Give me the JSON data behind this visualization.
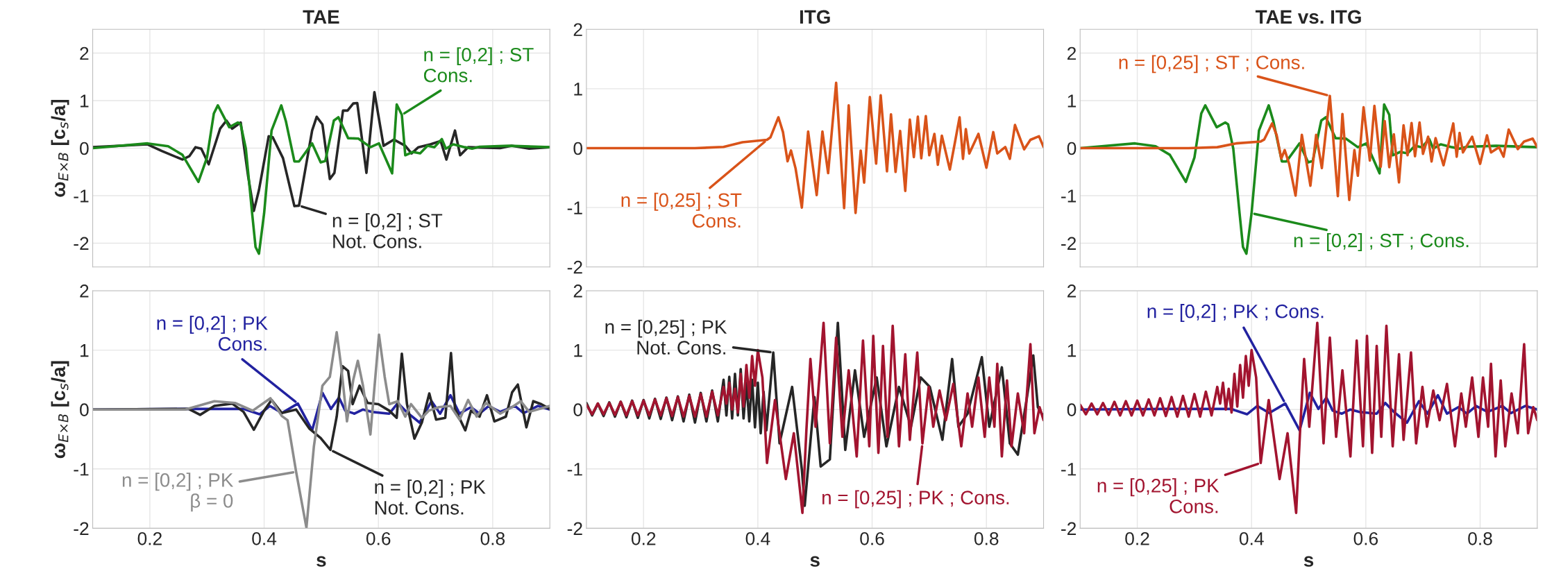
{
  "chart_data": [
    {
      "type": "line",
      "title": "TAE",
      "ylabel": "ω$_{E×B}$ [c$_{s}$/a]",
      "xlim": [
        0.1,
        0.9
      ],
      "xticks": [
        0.2,
        0.4,
        0.6,
        0.8
      ],
      "ylim": [
        -2.5,
        2.5
      ],
      "yticks": [
        -2,
        -1,
        0,
        1,
        2
      ],
      "grid": true,
      "tick_labels": "y",
      "series": [
        {
          "color": "#262626",
          "x": [
            0.1,
            0.196,
            0.221,
            0.257,
            0.269,
            0.28,
            0.29,
            0.303,
            0.323,
            0.334,
            0.344,
            0.359,
            0.372,
            0.382,
            0.391,
            0.408,
            0.415,
            0.433,
            0.453,
            0.461,
            0.484,
            0.492,
            0.502,
            0.515,
            0.523,
            0.538,
            0.546,
            0.556,
            0.563,
            0.579,
            0.593,
            0.609,
            0.627,
            0.647,
            0.658,
            0.67,
            0.691,
            0.709,
            0.719,
            0.734,
            0.743,
            0.757,
            0.813,
            0.833,
            0.864,
            0.9
          ],
          "values": [
            0.02,
            0.08,
            -0.06,
            -0.24,
            -0.17,
            0.02,
            -0.01,
            -0.34,
            0.41,
            0.58,
            0.41,
            0.54,
            -0.59,
            -1.32,
            -0.88,
            0.25,
            0.23,
            -0.21,
            -1.22,
            -1.21,
            0.37,
            0.66,
            0.5,
            -0.65,
            -0.52,
            0.79,
            0.79,
            0.94,
            0.95,
            -0.52,
            1.18,
            0.05,
            0.18,
            0.05,
            -0.11,
            0.02,
            0.08,
            0.15,
            -0.24,
            0.37,
            -0.15,
            0.02,
            0,
            0.05,
            -0.01,
            0.02
          ]
        },
        {
          "color": "#1b8a1b",
          "x": [
            0.1,
            0.196,
            0.232,
            0.257,
            0.285,
            0.3,
            0.312,
            0.319,
            0.339,
            0.354,
            0.359,
            0.368,
            0.379,
            0.385,
            0.391,
            0.4,
            0.413,
            0.43,
            0.438,
            0.453,
            0.461,
            0.484,
            0.499,
            0.507,
            0.522,
            0.53,
            0.547,
            0.565,
            0.586,
            0.601,
            0.624,
            0.632,
            0.641,
            0.647,
            0.66,
            0.673,
            0.686,
            0.698,
            0.711,
            0.718,
            0.731,
            0.751,
            0.764,
            0.777,
            0.828,
            0.9
          ],
          "values": [
            0,
            0.1,
            0.04,
            -0.14,
            -0.71,
            -0.2,
            0.73,
            0.9,
            0.44,
            0.54,
            0.5,
            -0.01,
            -1.37,
            -2.08,
            -2.22,
            -1.37,
            0.37,
            0.9,
            0.57,
            -0.28,
            -0.28,
            0.1,
            -0.3,
            -0.27,
            0.58,
            0.65,
            0.21,
            0.2,
            0.02,
            0.1,
            -0.53,
            0.92,
            0.7,
            -0.15,
            -0.08,
            -0.11,
            0.05,
            0.02,
            0.19,
            -0.01,
            0.08,
            0.02,
            -0.01,
            0.03,
            0.05,
            0.02
          ]
        }
      ],
      "annotations": [
        {
          "text": "n = [0,2] ; ST\nNot. Cons.",
          "x": 0.461,
          "y": -1.21
        },
        {
          "text": "n = [0,2] ; ST\nCons.",
          "x": 0.641,
          "y": 0.7
        }
      ]
    },
    {
      "type": "line",
      "title": "ITG",
      "xlim": [
        0.1,
        0.9
      ],
      "xticks": [
        0.2,
        0.4,
        0.6,
        0.8
      ],
      "ylim": [
        -2,
        2
      ],
      "yticks": [
        -2,
        -1,
        0,
        1,
        2
      ],
      "grid": true,
      "tick_labels": "y",
      "series": [
        {
          "color": "#d95319",
          "x": [
            0.1,
            0.29,
            0.34,
            0.373,
            0.416,
            0.422,
            0.436,
            0.444,
            0.452,
            0.458,
            0.466,
            0.477,
            0.488,
            0.503,
            0.513,
            0.523,
            0.537,
            0.551,
            0.559,
            0.571,
            0.58,
            0.586,
            0.596,
            0.607,
            0.615,
            0.626,
            0.633,
            0.641,
            0.649,
            0.658,
            0.666,
            0.673,
            0.68,
            0.686,
            0.694,
            0.7,
            0.709,
            0.715,
            0.722,
            0.736,
            0.745,
            0.753,
            0.759,
            0.764,
            0.77,
            0.786,
            0.8,
            0.812,
            0.819,
            0.833,
            0.841,
            0.85,
            0.866,
            0.877,
            0.892,
            0.9
          ],
          "values": [
            0,
            0,
            0.02,
            0.1,
            0.14,
            0.18,
            0.52,
            0.27,
            -0.22,
            -0.04,
            -0.34,
            -1,
            0.28,
            -0.79,
            0.28,
            -0.42,
            1.1,
            -1.01,
            0.72,
            -1.09,
            -0.04,
            -0.58,
            0.86,
            -0.26,
            0.89,
            -0.39,
            0.57,
            -0.4,
            0.29,
            -0.72,
            0.48,
            -0.15,
            0.53,
            -0.17,
            0.54,
            -0.12,
            0.24,
            -0.28,
            0.21,
            -0.36,
            0.1,
            0.52,
            -0.18,
            0.32,
            -0.09,
            0.24,
            -0.33,
            0.27,
            -0.09,
            0.02,
            -0.18,
            0.39,
            -0.02,
            0.14,
            0.2,
            0.02
          ]
        }
      ],
      "annotations": [
        {
          "text": "n = [0,25] ; ST\nCons.",
          "x": 0.416,
          "y": 0.14
        }
      ]
    },
    {
      "type": "line",
      "title": "TAE vs. ITG",
      "xlim": [
        0.1,
        0.9
      ],
      "xticks": [
        0.2,
        0.4,
        0.6,
        0.8
      ],
      "ylim": [
        -2.5,
        2.5
      ],
      "yticks": [
        -2,
        -1,
        0,
        1,
        2
      ],
      "grid": true,
      "tick_labels": "y",
      "series": [
        {
          "color": "#1b8a1b",
          "x": [
            0.1,
            0.196,
            0.232,
            0.257,
            0.285,
            0.3,
            0.312,
            0.319,
            0.339,
            0.354,
            0.359,
            0.368,
            0.379,
            0.385,
            0.391,
            0.4,
            0.413,
            0.43,
            0.438,
            0.453,
            0.461,
            0.484,
            0.499,
            0.507,
            0.522,
            0.53,
            0.547,
            0.565,
            0.586,
            0.601,
            0.624,
            0.632,
            0.641,
            0.647,
            0.66,
            0.673,
            0.686,
            0.698,
            0.711,
            0.718,
            0.731,
            0.751,
            0.764,
            0.777,
            0.828,
            0.9
          ],
          "values": [
            0,
            0.1,
            0.04,
            -0.14,
            -0.71,
            -0.2,
            0.73,
            0.9,
            0.44,
            0.54,
            0.5,
            -0.01,
            -1.37,
            -2.08,
            -2.22,
            -1.37,
            0.37,
            0.9,
            0.57,
            -0.28,
            -0.28,
            0.1,
            -0.3,
            -0.27,
            0.58,
            0.65,
            0.21,
            0.2,
            0.02,
            0.1,
            -0.53,
            0.92,
            0.7,
            -0.15,
            -0.08,
            -0.11,
            0.05,
            0.02,
            0.19,
            -0.01,
            0.08,
            0.02,
            -0.01,
            0.03,
            0.05,
            0.02
          ]
        },
        {
          "color": "#d95319",
          "x": [
            0.1,
            0.29,
            0.34,
            0.373,
            0.416,
            0.422,
            0.436,
            0.444,
            0.452,
            0.458,
            0.466,
            0.477,
            0.488,
            0.503,
            0.513,
            0.523,
            0.537,
            0.551,
            0.559,
            0.571,
            0.58,
            0.586,
            0.596,
            0.607,
            0.615,
            0.626,
            0.633,
            0.641,
            0.649,
            0.658,
            0.666,
            0.673,
            0.68,
            0.686,
            0.694,
            0.7,
            0.709,
            0.715,
            0.722,
            0.736,
            0.745,
            0.753,
            0.759,
            0.764,
            0.77,
            0.786,
            0.8,
            0.812,
            0.819,
            0.833,
            0.841,
            0.85,
            0.866,
            0.877,
            0.892,
            0.9
          ],
          "values": [
            0,
            0,
            0.02,
            0.1,
            0.14,
            0.18,
            0.52,
            0.27,
            -0.22,
            -0.04,
            -0.34,
            -1,
            0.28,
            -0.79,
            0.28,
            -0.42,
            1.1,
            -1.01,
            0.72,
            -1.09,
            -0.04,
            -0.58,
            0.86,
            -0.26,
            0.89,
            -0.39,
            0.57,
            -0.4,
            0.29,
            -0.72,
            0.48,
            -0.15,
            0.53,
            -0.17,
            0.54,
            -0.12,
            0.24,
            -0.28,
            0.21,
            -0.36,
            0.1,
            0.52,
            -0.18,
            0.32,
            -0.09,
            0.24,
            -0.33,
            0.27,
            -0.09,
            0.02,
            -0.18,
            0.39,
            -0.02,
            0.14,
            0.2,
            0.02
          ]
        }
      ],
      "annotations": [
        {
          "text": "n = [0,2] ; ST ; Cons.",
          "x": 0.4,
          "y": -1.37
        },
        {
          "text": "n = [0,25] ; ST ; Cons.",
          "x": 0.537,
          "y": 1.1
        }
      ]
    },
    {
      "type": "line",
      "xlabel": "s",
      "ylabel": "ω$_{E×B}$ [c$_{s}$/a]",
      "xlim": [
        0.1,
        0.9
      ],
      "xticks": [
        0.2,
        0.4,
        0.6,
        0.8
      ],
      "ylim": [
        -2,
        2
      ],
      "yticks": [
        -2,
        -1,
        0,
        1,
        2
      ],
      "grid": true,
      "series": [
        {
          "color": "#2222a0",
          "x": [
            0.1,
            0.252,
            0.364,
            0.392,
            0.41,
            0.431,
            0.459,
            0.484,
            0.502,
            0.517,
            0.531,
            0.542,
            0.558,
            0.573,
            0.588,
            0.619,
            0.634,
            0.649,
            0.672,
            0.693,
            0.708,
            0.726,
            0.742,
            0.762,
            0.777,
            0.793,
            0.813,
            0.839,
            0.854,
            0.879,
            0.9
          ],
          "values": [
            0,
            0.01,
            0.01,
            -0.08,
            0.06,
            -0.06,
            0.1,
            -0.35,
            0.28,
            0.01,
            0.2,
            -0.02,
            -0.07,
            0,
            -0.04,
            -0.07,
            0.11,
            -0.04,
            -0.22,
            0.14,
            -0.07,
            0.24,
            -0.07,
            0.04,
            -0.07,
            0.06,
            -0.04,
            0.06,
            -0.06,
            0.06,
            0
          ]
        },
        {
          "color": "#262626",
          "x": [
            0.1,
            0.268,
            0.288,
            0.313,
            0.344,
            0.364,
            0.382,
            0.4,
            0.413,
            0.431,
            0.456,
            0.479,
            0.499,
            0.516,
            0.527,
            0.537,
            0.547,
            0.555,
            0.567,
            0.581,
            0.6,
            0.619,
            0.632,
            0.641,
            0.65,
            0.663,
            0.676,
            0.689,
            0.701,
            0.717,
            0.727,
            0.734,
            0.752,
            0.762,
            0.777,
            0.79,
            0.803,
            0.823,
            0.834,
            0.844,
            0.859,
            0.871,
            0.885,
            0.9
          ],
          "values": [
            0,
            0.01,
            -0.09,
            0.06,
            0.1,
            -0.04,
            -0.34,
            -0.02,
            0.16,
            -0.06,
            0,
            -0.32,
            -0.48,
            -0.68,
            -0.12,
            0.73,
            0.65,
            0.09,
            0.4,
            0.11,
            0.09,
            -0.02,
            -0.14,
            0.94,
            0.09,
            -0.49,
            -0.22,
            0.27,
            -0.17,
            -0.14,
            0.95,
            0.01,
            -0.35,
            -0.02,
            -0.12,
            0.24,
            -0.2,
            -0.12,
            0.29,
            0.42,
            -0.3,
            0.14,
            0.09,
            0.01
          ]
        },
        {
          "color": "#8c8c8c",
          "x": [
            0.1,
            0.262,
            0.313,
            0.349,
            0.38,
            0.411,
            0.431,
            0.441,
            0.456,
            0.474,
            0.487,
            0.502,
            0.515,
            0.527,
            0.535,
            0.545,
            0.556,
            0.564,
            0.573,
            0.586,
            0.601,
            0.611,
            0.619,
            0.634,
            0.647,
            0.657,
            0.676,
            0.688,
            0.706,
            0.726,
            0.742,
            0.757,
            0.772,
            0.788,
            0.813,
            0.834,
            0.849,
            0.864,
            0.9
          ],
          "values": [
            0,
            0,
            0.14,
            0.11,
            -0.02,
            0.19,
            -0.11,
            -0.18,
            -1.05,
            -1.99,
            -0.63,
            0.4,
            0.55,
            1.3,
            0.71,
            -0.2,
            0.5,
            0.82,
            0.4,
            -0.42,
            1.26,
            0.55,
            0.09,
            0.14,
            -0.12,
            0.09,
            -0.14,
            -0.02,
            0.04,
            0.06,
            -0.17,
            0.16,
            -0.12,
            0.11,
            -0.07,
            0.04,
            0.14,
            -0.04,
            0.06
          ]
        }
      ],
      "annotations": [
        {
          "text": "n = [0,2] ; PK\nCons.",
          "x": 0.459,
          "y": 0.1
        },
        {
          "text": "n = [0,2] ; PK\nNot. Cons.",
          "x": 0.516,
          "y": -0.68
        },
        {
          "text": "n = [0,2] ; PK\nβ = 0",
          "x": 0.456,
          "y": -1.05
        }
      ]
    },
    {
      "type": "line",
      "xlabel": "s",
      "xlim": [
        0.1,
        0.9
      ],
      "xticks": [
        0.2,
        0.4,
        0.6,
        0.8
      ],
      "ylim": [
        -2,
        2
      ],
      "yticks": [
        -2,
        -1,
        0,
        1,
        2
      ],
      "grid": true,
      "series": [
        {
          "color": "#262626",
          "x": [
            0.1,
            0.11,
            0.12,
            0.13,
            0.14,
            0.15,
            0.16,
            0.17,
            0.18,
            0.19,
            0.2,
            0.21,
            0.22,
            0.23,
            0.24,
            0.25,
            0.26,
            0.27,
            0.28,
            0.29,
            0.3,
            0.31,
            0.32,
            0.33,
            0.34,
            0.345,
            0.35,
            0.355,
            0.36,
            0.365,
            0.37,
            0.375,
            0.38,
            0.385,
            0.39,
            0.395,
            0.4,
            0.405,
            0.41,
            0.415,
            0.427,
            0.438,
            0.46,
            0.477,
            0.482,
            0.499,
            0.51,
            0.526,
            0.54,
            0.553,
            0.57,
            0.586,
            0.608,
            0.625,
            0.647,
            0.668,
            0.685,
            0.701,
            0.723,
            0.74,
            0.751,
            0.767,
            0.792,
            0.805,
            0.827,
            0.841,
            0.855,
            0.871,
            0.882,
            0.89,
            0.9
          ],
          "values": [
            0.11,
            -0.1,
            0.1,
            -0.11,
            0.12,
            -0.12,
            0.13,
            -0.13,
            0.15,
            -0.14,
            0.16,
            -0.15,
            0.18,
            -0.16,
            0.2,
            -0.18,
            0.22,
            -0.2,
            0.25,
            -0.22,
            0.28,
            -0.2,
            0.32,
            -0.2,
            0.5,
            -0.1,
            0.55,
            -0.15,
            0.6,
            -0.1,
            0.68,
            -0.15,
            0.45,
            -0.2,
            0.5,
            -0.3,
            0.45,
            -0.4,
            0.3,
            -0.35,
            0.96,
            -0.57,
            0.38,
            -1.01,
            -1.62,
            0.21,
            -0.96,
            -0.84,
            1.46,
            -0.68,
            0.66,
            -0.46,
            0.54,
            -0.62,
            0.38,
            -0.29,
            0.54,
            0.38,
            -0.51,
            0.85,
            -0.29,
            -0.07,
            0.88,
            -0.29,
            0.71,
            -0.57,
            -0.76,
            0.21,
            0.91,
            0.04,
            -0.12
          ]
        },
        {
          "color": "#a2142f",
          "x": [
            0.1,
            0.11,
            0.12,
            0.13,
            0.14,
            0.15,
            0.16,
            0.17,
            0.18,
            0.19,
            0.2,
            0.21,
            0.22,
            0.23,
            0.24,
            0.25,
            0.26,
            0.27,
            0.28,
            0.29,
            0.3,
            0.31,
            0.32,
            0.33,
            0.34,
            0.345,
            0.35,
            0.355,
            0.36,
            0.365,
            0.37,
            0.375,
            0.38,
            0.385,
            0.39,
            0.395,
            0.4,
            0.408,
            0.416,
            0.43,
            0.438,
            0.449,
            0.463,
            0.478,
            0.485,
            0.492,
            0.501,
            0.515,
            0.526,
            0.537,
            0.548,
            0.559,
            0.573,
            0.584,
            0.595,
            0.602,
            0.611,
            0.619,
            0.627,
            0.636,
            0.647,
            0.658,
            0.666,
            0.679,
            0.688,
            0.699,
            0.707,
            0.718,
            0.729,
            0.742,
            0.756,
            0.767,
            0.775,
            0.786,
            0.797,
            0.805,
            0.814,
            0.819,
            0.827,
            0.836,
            0.844,
            0.855,
            0.866,
            0.877,
            0.884,
            0.893,
            0.9
          ],
          "values": [
            0.08,
            -0.08,
            0.1,
            -0.08,
            0.11,
            -0.09,
            0.13,
            -0.1,
            0.14,
            -0.1,
            0.15,
            -0.1,
            0.17,
            -0.1,
            0.19,
            -0.11,
            0.21,
            -0.12,
            0.23,
            -0.12,
            0.26,
            -0.12,
            0.3,
            -0.1,
            0.38,
            0.1,
            0.45,
            0,
            0.35,
            -0.05,
            0.6,
            0.05,
            0.75,
            0.2,
            0.9,
            0.4,
            1.0,
            0.54,
            -0.9,
            0.16,
            -0.4,
            -1.17,
            -0.4,
            -1.74,
            -0.34,
            0.85,
            -0.29,
            1.46,
            -0.57,
            1.21,
            -0.46,
            0.66,
            -0.79,
            1.16,
            -0.62,
            1.24,
            -0.73,
            1.07,
            -0.46,
            1.41,
            -0.62,
            0.93,
            -0.51,
            0.96,
            -0.57,
            0.38,
            -0.29,
            0.32,
            -0.18,
            0.43,
            -0.62,
            0.27,
            -0.29,
            0.54,
            -0.46,
            0.54,
            -0.29,
            0.77,
            -0.79,
            0.49,
            -0.62,
            0.27,
            -0.4,
            1.1,
            -0.4,
            0.04,
            -0.18
          ]
        }
      ],
      "annotations": [
        {
          "text": "n = [0,25] ; PK\nNot. Cons.",
          "x": 0.427,
          "y": 0.96
        },
        {
          "text": "n = [0,25] ; PK ; Cons.",
          "x": 0.688,
          "y": -0.57
        }
      ]
    },
    {
      "type": "line",
      "xlabel": "s",
      "xlim": [
        0.1,
        0.9
      ],
      "xticks": [
        0.2,
        0.4,
        0.6,
        0.8
      ],
      "ylim": [
        -2,
        2
      ],
      "yticks": [
        -2,
        -1,
        0,
        1,
        2
      ],
      "grid": true,
      "series": [
        {
          "color": "#2222a0",
          "x": [
            0.1,
            0.252,
            0.364,
            0.392,
            0.41,
            0.431,
            0.459,
            0.484,
            0.502,
            0.517,
            0.531,
            0.542,
            0.558,
            0.573,
            0.588,
            0.619,
            0.634,
            0.649,
            0.672,
            0.693,
            0.708,
            0.726,
            0.742,
            0.762,
            0.777,
            0.793,
            0.813,
            0.839,
            0.854,
            0.879,
            0.9
          ],
          "values": [
            0,
            0.01,
            0.01,
            -0.08,
            0.06,
            -0.06,
            0.1,
            -0.35,
            0.28,
            0.01,
            0.2,
            -0.02,
            -0.07,
            0,
            -0.04,
            -0.07,
            0.11,
            -0.04,
            -0.22,
            0.14,
            -0.07,
            0.24,
            -0.07,
            0.04,
            -0.07,
            0.06,
            -0.04,
            0.06,
            -0.06,
            0.06,
            0
          ]
        },
        {
          "color": "#a2142f",
          "x": [
            0.1,
            0.11,
            0.12,
            0.13,
            0.14,
            0.15,
            0.16,
            0.17,
            0.18,
            0.19,
            0.2,
            0.21,
            0.22,
            0.23,
            0.24,
            0.25,
            0.26,
            0.27,
            0.28,
            0.29,
            0.3,
            0.31,
            0.32,
            0.33,
            0.34,
            0.345,
            0.35,
            0.355,
            0.36,
            0.365,
            0.37,
            0.375,
            0.38,
            0.385,
            0.39,
            0.395,
            0.4,
            0.408,
            0.416,
            0.43,
            0.438,
            0.449,
            0.463,
            0.478,
            0.485,
            0.492,
            0.501,
            0.515,
            0.526,
            0.537,
            0.548,
            0.559,
            0.573,
            0.584,
            0.595,
            0.602,
            0.611,
            0.619,
            0.627,
            0.636,
            0.647,
            0.658,
            0.666,
            0.679,
            0.688,
            0.699,
            0.707,
            0.718,
            0.729,
            0.742,
            0.756,
            0.767,
            0.775,
            0.786,
            0.797,
            0.805,
            0.814,
            0.819,
            0.827,
            0.836,
            0.844,
            0.855,
            0.866,
            0.877,
            0.884,
            0.893,
            0.9
          ],
          "values": [
            0.08,
            -0.08,
            0.1,
            -0.08,
            0.11,
            -0.09,
            0.13,
            -0.1,
            0.14,
            -0.1,
            0.15,
            -0.1,
            0.17,
            -0.1,
            0.19,
            -0.11,
            0.21,
            -0.12,
            0.23,
            -0.12,
            0.26,
            -0.12,
            0.3,
            -0.1,
            0.38,
            0.1,
            0.45,
            0,
            0.35,
            -0.05,
            0.6,
            0.05,
            0.75,
            0.2,
            0.9,
            0.4,
            1.0,
            0.54,
            -0.9,
            0.16,
            -0.4,
            -1.17,
            -0.4,
            -1.74,
            -0.34,
            0.85,
            -0.29,
            1.46,
            -0.57,
            1.21,
            -0.46,
            0.66,
            -0.79,
            1.16,
            -0.62,
            1.24,
            -0.73,
            1.07,
            -0.46,
            1.41,
            -0.62,
            0.93,
            -0.51,
            0.96,
            -0.57,
            0.38,
            -0.29,
            0.32,
            -0.18,
            0.43,
            -0.62,
            0.27,
            -0.29,
            0.54,
            -0.46,
            0.54,
            -0.29,
            0.77,
            -0.79,
            0.49,
            -0.62,
            0.27,
            -0.4,
            1.1,
            -0.4,
            0.04,
            -0.18
          ]
        }
      ],
      "annotations": [
        {
          "text": "n = [0,2] ; PK ; Cons.",
          "x": 0.459,
          "y": 0.1
        },
        {
          "text": "n = [0,25] ; PK\nCons.",
          "x": 0.416,
          "y": -0.9
        }
      ]
    }
  ]
}
